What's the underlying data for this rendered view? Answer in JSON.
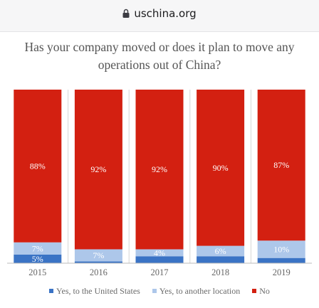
{
  "browser": {
    "url": "uschina.org",
    "icon": "lock-icon"
  },
  "colors": {
    "no": "#d32011",
    "yes_other": "#adc7ea",
    "yes_us": "#3a73c5",
    "grid": "#d6d6d6"
  },
  "chart_data": {
    "type": "bar",
    "stacked": true,
    "title": "Has your company moved or does it plan to move any operations out of China?",
    "categories": [
      "2015",
      "2016",
      "2017",
      "2018",
      "2019"
    ],
    "ylim": [
      0,
      100
    ],
    "series": [
      {
        "name": "Yes, to the United States",
        "color": "#3a73c5",
        "values": [
          5,
          1,
          4,
          4,
          3
        ],
        "labels": [
          "5%",
          "",
          "",
          "",
          ""
        ]
      },
      {
        "name": "Yes, to another location",
        "color": "#adc7ea",
        "values": [
          7,
          7,
          4,
          6,
          10
        ],
        "labels": [
          "7%",
          "7%",
          "4%",
          "6%",
          "10%"
        ]
      },
      {
        "name": "No",
        "color": "#d32011",
        "values": [
          88,
          92,
          92,
          90,
          87
        ],
        "labels": [
          "88%",
          "92%",
          "92%",
          "90%",
          "87%"
        ]
      }
    ],
    "legend": "bottom"
  }
}
